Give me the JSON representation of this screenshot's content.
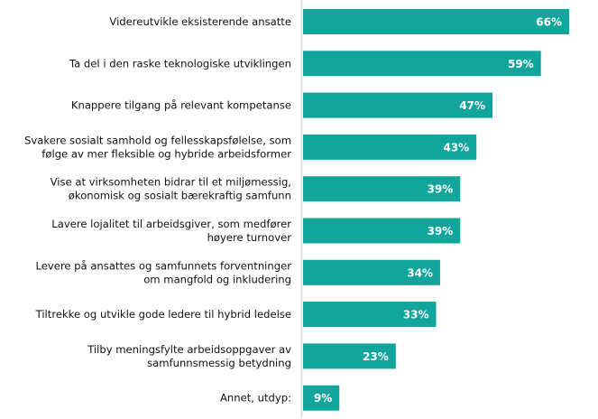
{
  "chart_data": {
    "type": "bar",
    "orientation": "horizontal",
    "title": "",
    "xlabel": "",
    "ylabel": "",
    "xlim": [
      0,
      66
    ],
    "grid": false,
    "bar_color": "#12A59B",
    "categories": [
      [
        "Videreutvikle eksisterende ansatte"
      ],
      [
        "Ta del i den raske teknologiske utviklingen"
      ],
      [
        "Knappere tilgang på relevant kompetanse"
      ],
      [
        "Svakere sosialt samhold og fellesskapsfølelse, som",
        "følge av mer fleksible og hybride arbeidsformer"
      ],
      [
        "Vise at virksomheten bidrar til et miljømessig,",
        "økonomisk og sosialt bærekraftig samfunn"
      ],
      [
        "Lavere lojalitet til arbeidsgiver, som medfører",
        "høyere turnover"
      ],
      [
        "Levere på ansattes og samfunnets forventninger",
        "om mangfold og inkludering"
      ],
      [
        "Tiltrekke og utvikle gode ledere til hybrid ledelse"
      ],
      [
        "Tilby meningsfylte arbeidsoppgaver av",
        "samfunnsmessig betydning"
      ],
      [
        "Annet, utdyp:"
      ]
    ],
    "values": [
      66,
      59,
      47,
      43,
      39,
      39,
      34,
      33,
      23,
      9
    ],
    "value_labels": [
      "66%",
      "59%",
      "47%",
      "43%",
      "39%",
      "39%",
      "34%",
      "33%",
      "23%",
      "9%"
    ]
  }
}
